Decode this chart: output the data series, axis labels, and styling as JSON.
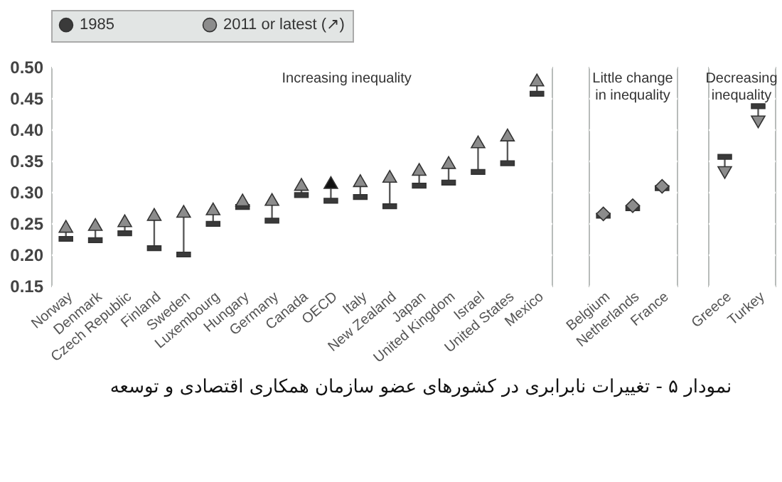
{
  "chart_data": [
    {
      "type": "scatter",
      "categories": [
        "Norway",
        "Denmark",
        "Czech Republic",
        "Finland",
        "Sweden",
        "Luxembourg",
        "Hungary",
        "Germany",
        "Canada",
        "OECD",
        "Italy",
        "New Zealand",
        "Japan",
        "United Kingdom",
        "Israel",
        "United States",
        "Mexico"
      ],
      "series": [
        {
          "name": "1985",
          "color": "#3a3a3a",
          "marker": "square",
          "values": [
            0.225,
            0.223,
            0.234,
            0.21,
            0.2,
            0.249,
            0.276,
            0.254,
            0.295,
            0.286,
            0.292,
            0.277,
            0.31,
            0.315,
            0.332,
            0.346,
            0.457
          ]
        },
        {
          "name": "2011 or latest (↗)",
          "color": "#8c8c8c",
          "marker": "triangle",
          "values": [
            0.245,
            0.248,
            0.254,
            0.264,
            0.269,
            0.273,
            0.287,
            0.288,
            0.312,
            0.315,
            0.318,
            0.325,
            0.336,
            0.347,
            0.38,
            0.391,
            0.479
          ],
          "colors": [
            "#8c8c8c",
            "#8c8c8c",
            "#8c8c8c",
            "#8c8c8c",
            "#8c8c8c",
            "#8c8c8c",
            "#8c8c8c",
            "#8c8c8c",
            "#8c8c8c",
            "#111111",
            "#8c8c8c",
            "#8c8c8c",
            "#8c8c8c",
            "#8c8c8c",
            "#8c8c8c",
            "#8c8c8c",
            "#8c8c8c"
          ]
        }
      ],
      "ylim": [
        0.15,
        0.5
      ],
      "yticks": [
        {
          "value": 0.15,
          "label": "0.15"
        },
        {
          "value": 0.2,
          "label": "0.20"
        },
        {
          "value": 0.25,
          "label": "0.25"
        },
        {
          "value": 0.3,
          "label": "0.30"
        },
        {
          "value": 0.35,
          "label": "0.35"
        },
        {
          "value": 0.4,
          "label": "0.40"
        },
        {
          "value": 0.45,
          "label": "0.45"
        },
        {
          "value": 0.5,
          "label": "0.50"
        }
      ],
      "grid": true,
      "legend": "top",
      "annotations": [
        "Increasing inequality",
        "نمودار ۵ - تغییرات نابرابری در کشورهای عضو سازمان همکاری اقتصادی و توسعه"
      ]
    },
    {
      "type": "scatter",
      "categories": [
        "Belgium",
        "Netherlands",
        "France"
      ],
      "series": [
        {
          "color": "#3a3a3a",
          "marker": "square",
          "values": [
            0.262,
            0.274,
            0.306
          ]
        },
        {
          "color": "#8c8c8c",
          "marker": "diamond",
          "values": [
            0.265,
            0.278,
            0.309
          ]
        }
      ],
      "ylim": [
        0.15,
        0.5
      ],
      "yticks": [
        0.15,
        0.2,
        0.25,
        0.3,
        0.35,
        0.4,
        0.45,
        0.5
      ],
      "grid": true,
      "tick_labels": "x",
      "annotations": [
        "Little change in inequality"
      ]
    },
    {
      "type": "scatter",
      "categories": [
        "Greece",
        "Turkey"
      ],
      "series": [
        {
          "color": "#3a3a3a",
          "marker": "square",
          "values": [
            0.356,
            0.437
          ]
        },
        {
          "color": "#8c8c8c",
          "marker": "triangle",
          "values": [
            0.331,
            0.412
          ]
        }
      ],
      "ylim": [
        0.15,
        0.5
      ],
      "yticks": [
        0.15,
        0.2,
        0.25,
        0.3,
        0.35,
        0.4,
        0.45,
        0.5
      ],
      "grid": true,
      "tick_labels": "x",
      "annotations": [
        "Decreasing inequality"
      ]
    }
  ]
}
